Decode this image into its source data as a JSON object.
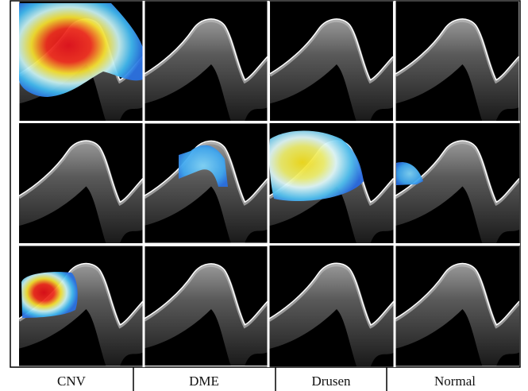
{
  "columns": [
    "CNV",
    "DME",
    "Drusen",
    "Normal"
  ]
}
